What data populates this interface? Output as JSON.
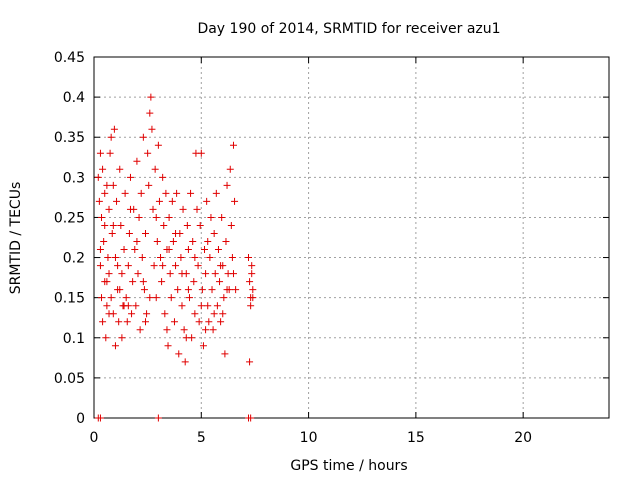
{
  "chart_data": {
    "type": "scatter",
    "title": "Day 190 of 2014, SRMTID for receiver azu1",
    "xlabel": "GPS time / hours",
    "ylabel": "SRMTID / TECUs",
    "xlim": [
      0,
      24
    ],
    "ylim": [
      0,
      0.45
    ],
    "xticks": [
      0,
      5,
      10,
      15,
      20
    ],
    "yticks": [
      0,
      0.05,
      0.1,
      0.15,
      0.2,
      0.25,
      0.3,
      0.35,
      0.4,
      0.45
    ],
    "xtick_labels": [
      "0",
      "5",
      "10",
      "15",
      "20"
    ],
    "ytick_labels": [
      "0",
      "0.05",
      "0.1",
      "0.15",
      "0.2",
      "0.25",
      "0.3",
      "0.35",
      "0.4",
      "0.45"
    ],
    "grid": true,
    "marker": "+",
    "color": "#e00000",
    "series": [
      {
        "points": [
          [
            0.2,
            0.3
          ],
          [
            0.25,
            0.27
          ],
          [
            0.3,
            0.33
          ],
          [
            0.35,
            0.25
          ],
          [
            0.3,
            0.19
          ],
          [
            0.4,
            0.12
          ],
          [
            0.35,
            0.15
          ],
          [
            0.45,
            0.22
          ],
          [
            0.5,
            0.28
          ],
          [
            0.4,
            0.31
          ],
          [
            0.5,
            0.17
          ],
          [
            0.55,
            0.1
          ],
          [
            0.6,
            0.14
          ],
          [
            0.5,
            0.24
          ],
          [
            0.6,
            0.29
          ],
          [
            0.65,
            0.2
          ],
          [
            0.7,
            0.26
          ],
          [
            0.75,
            0.33
          ],
          [
            0.7,
            0.18
          ],
          [
            0.8,
            0.15
          ],
          [
            0.8,
            0.35
          ],
          [
            0.85,
            0.23
          ],
          [
            0.9,
            0.29
          ],
          [
            0.95,
            0.36
          ],
          [
            0.9,
            0.13
          ],
          [
            1.0,
            0.2
          ],
          [
            1.05,
            0.27
          ],
          [
            1.1,
            0.16
          ],
          [
            1.0,
            0.09
          ],
          [
            1.15,
            0.12
          ],
          [
            1.2,
            0.31
          ],
          [
            1.25,
            0.24
          ],
          [
            1.3,
            0.18
          ],
          [
            1.35,
            0.14
          ],
          [
            1.3,
            0.1
          ],
          [
            1.4,
            0.21
          ],
          [
            1.45,
            0.28
          ],
          [
            1.5,
            0.15
          ],
          [
            1.55,
            0.12
          ],
          [
            1.6,
            0.19
          ],
          [
            1.65,
            0.23
          ],
          [
            1.7,
            0.3
          ],
          [
            1.75,
            0.13
          ],
          [
            1.8,
            0.17
          ],
          [
            1.85,
            0.26
          ],
          [
            1.9,
            0.21
          ],
          [
            1.95,
            0.14
          ],
          [
            2.0,
            0.32
          ],
          [
            2.05,
            0.18
          ],
          [
            2.1,
            0.25
          ],
          [
            2.15,
            0.11
          ],
          [
            2.2,
            0.28
          ],
          [
            2.25,
            0.2
          ],
          [
            2.3,
            0.35
          ],
          [
            2.35,
            0.16
          ],
          [
            2.4,
            0.23
          ],
          [
            2.45,
            0.13
          ],
          [
            2.5,
            0.33
          ],
          [
            2.55,
            0.29
          ],
          [
            2.6,
            0.38
          ],
          [
            2.65,
            0.4
          ],
          [
            2.7,
            0.36
          ],
          [
            2.75,
            0.26
          ],
          [
            2.8,
            0.19
          ],
          [
            2.85,
            0.31
          ],
          [
            2.9,
            0.15
          ],
          [
            2.95,
            0.22
          ],
          [
            3.0,
            0.34
          ],
          [
            3.05,
            0.27
          ],
          [
            3.1,
            0.2
          ],
          [
            3.15,
            0.17
          ],
          [
            3.2,
            0.3
          ],
          [
            3.25,
            0.24
          ],
          [
            3.3,
            0.13
          ],
          [
            3.35,
            0.28
          ],
          [
            3.4,
            0.21
          ],
          [
            3.45,
            0.09
          ],
          [
            3.5,
            0.25
          ],
          [
            3.55,
            0.18
          ],
          [
            3.6,
            0.15
          ],
          [
            3.65,
            0.27
          ],
          [
            3.7,
            0.22
          ],
          [
            3.75,
            0.12
          ],
          [
            3.8,
            0.19
          ],
          [
            3.85,
            0.28
          ],
          [
            3.9,
            0.16
          ],
          [
            3.95,
            0.08
          ],
          [
            4.0,
            0.23
          ],
          [
            4.05,
            0.2
          ],
          [
            4.1,
            0.14
          ],
          [
            4.15,
            0.26
          ],
          [
            4.2,
            0.11
          ],
          [
            4.25,
            0.07
          ],
          [
            4.3,
            0.18
          ],
          [
            4.35,
            0.24
          ],
          [
            4.4,
            0.21
          ],
          [
            4.45,
            0.15
          ],
          [
            4.5,
            0.28
          ],
          [
            4.55,
            0.1
          ],
          [
            4.6,
            0.22
          ],
          [
            4.65,
            0.17
          ],
          [
            4.7,
            0.13
          ],
          [
            4.75,
            0.33
          ],
          [
            4.8,
            0.26
          ],
          [
            4.85,
            0.19
          ],
          [
            4.9,
            0.12
          ],
          [
            4.95,
            0.24
          ],
          [
            5.0,
            0.33
          ],
          [
            5.05,
            0.16
          ],
          [
            5.1,
            0.09
          ],
          [
            5.15,
            0.21
          ],
          [
            5.2,
            0.18
          ],
          [
            5.25,
            0.27
          ],
          [
            5.3,
            0.14
          ],
          [
            5.35,
            0.12
          ],
          [
            5.4,
            0.2
          ],
          [
            5.45,
            0.25
          ],
          [
            5.5,
            0.16
          ],
          [
            5.55,
            0.11
          ],
          [
            5.6,
            0.23
          ],
          [
            5.65,
            0.18
          ],
          [
            5.7,
            0.28
          ],
          [
            5.75,
            0.14
          ],
          [
            5.8,
            0.21
          ],
          [
            5.85,
            0.17
          ],
          [
            5.9,
            0.12
          ],
          [
            5.95,
            0.25
          ],
          [
            6.0,
            0.19
          ],
          [
            6.05,
            0.15
          ],
          [
            6.1,
            0.08
          ],
          [
            6.15,
            0.22
          ],
          [
            6.2,
            0.29
          ],
          [
            6.25,
            0.18
          ],
          [
            6.3,
            0.16
          ],
          [
            6.35,
            0.31
          ],
          [
            6.4,
            0.24
          ],
          [
            6.45,
            0.2
          ],
          [
            6.5,
            0.34
          ],
          [
            6.55,
            0.27
          ],
          [
            6.6,
            0.16
          ],
          [
            0.3,
            0.21
          ],
          [
            0.6,
            0.17
          ],
          [
            0.9,
            0.24
          ],
          [
            1.1,
            0.19
          ],
          [
            1.4,
            0.14
          ],
          [
            1.7,
            0.26
          ],
          [
            2.0,
            0.22
          ],
          [
            2.3,
            0.17
          ],
          [
            2.6,
            0.15
          ],
          [
            2.9,
            0.25
          ],
          [
            3.2,
            0.19
          ],
          [
            3.5,
            0.21
          ],
          [
            3.8,
            0.23
          ],
          [
            4.1,
            0.18
          ],
          [
            4.4,
            0.16
          ],
          [
            4.7,
            0.2
          ],
          [
            5.0,
            0.14
          ],
          [
            5.3,
            0.22
          ],
          [
            5.6,
            0.13
          ],
          [
            5.9,
            0.19
          ],
          [
            6.2,
            0.16
          ],
          [
            6.5,
            0.18
          ],
          [
            1.6,
            0.14
          ],
          [
            2.4,
            0.12
          ],
          [
            3.4,
            0.11
          ],
          [
            4.3,
            0.1
          ],
          [
            5.2,
            0.11
          ],
          [
            6.0,
            0.13
          ],
          [
            0.7,
            0.13
          ],
          [
            1.2,
            0.16
          ],
          [
            7.2,
            0.2
          ],
          [
            7.25,
            0.17
          ],
          [
            7.3,
            0.15
          ],
          [
            7.35,
            0.19
          ],
          [
            7.4,
            0.16
          ],
          [
            7.3,
            0.14
          ],
          [
            7.35,
            0.18
          ],
          [
            7.4,
            0.15
          ],
          [
            7.25,
            0.07
          ],
          [
            0.2,
            0.0
          ],
          [
            0.3,
            0.0
          ],
          [
            3.0,
            0.0
          ],
          [
            7.2,
            0.0
          ],
          [
            7.3,
            0.0
          ]
        ]
      }
    ]
  }
}
